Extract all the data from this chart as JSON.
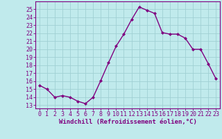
{
  "x": [
    0,
    1,
    2,
    3,
    4,
    5,
    6,
    7,
    8,
    9,
    10,
    11,
    12,
    13,
    14,
    15,
    16,
    17,
    18,
    19,
    20,
    21,
    22,
    23
  ],
  "y": [
    15.5,
    15.0,
    14.0,
    14.2,
    14.0,
    13.5,
    13.2,
    14.0,
    16.1,
    18.3,
    20.4,
    21.9,
    23.7,
    25.3,
    24.9,
    24.5,
    22.1,
    21.9,
    21.9,
    21.4,
    20.0,
    20.0,
    18.2,
    16.3
  ],
  "line_color": "#800080",
  "marker": "D",
  "marker_size": 2.0,
  "bg_color": "#c0eaec",
  "grid_color": "#a0d0d4",
  "xlabel": "Windchill (Refroidissement éolien,°C)",
  "xlabel_color": "#800080",
  "ylabel_ticks": [
    13,
    14,
    15,
    16,
    17,
    18,
    19,
    20,
    21,
    22,
    23,
    24,
    25
  ],
  "ylim": [
    12.6,
    26.0
  ],
  "xlim": [
    -0.5,
    23.5
  ],
  "tick_color": "#800080",
  "spine_color": "#800080",
  "line_width": 1.0,
  "font_size": 6.0,
  "xlabel_fontsize": 6.5
}
